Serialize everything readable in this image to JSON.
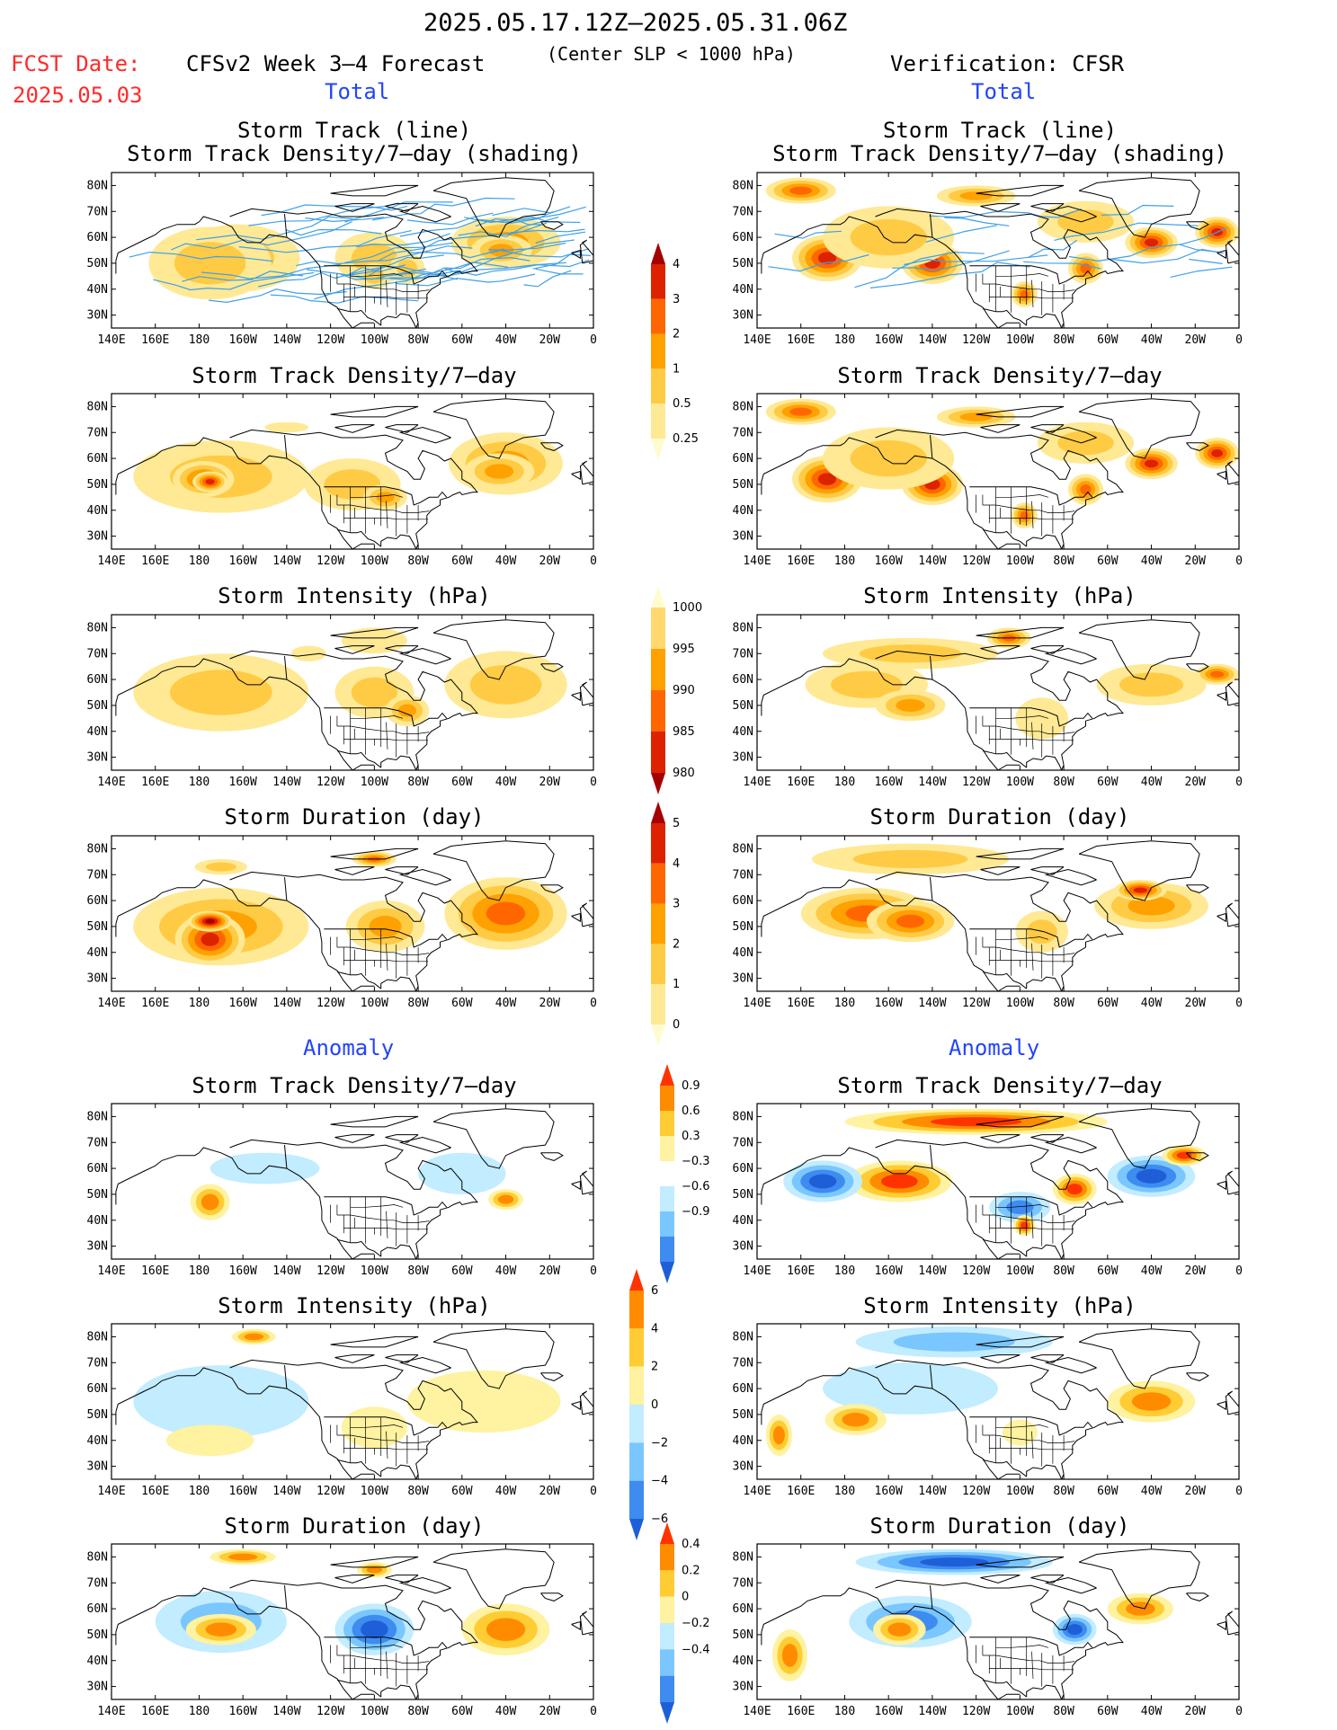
{
  "header": {
    "period": "2025.05.17.12Z–2025.05.31.06Z",
    "fcst_label": "FCST Date:",
    "fcst_date": "2025.05.03",
    "model": "CFSv2 Week 3–4 Forecast",
    "criterion": "(Center SLP < 1000 hPa)",
    "verification": "Verification: CFSR",
    "left_total": "Total",
    "right_total": "Total",
    "left_anomaly": "Anomaly",
    "right_anomaly": "Anomaly"
  },
  "panel_titles": {
    "track_line": "Storm Track (line)",
    "track_shading": "Storm Track Density/7–day (shading)",
    "density": "Storm Track Density/7–day",
    "intensity": "Storm Intensity (hPa)",
    "duration": "Storm Duration (day)"
  },
  "axes": {
    "lat_ticks": [
      "80N",
      "70N",
      "60N",
      "50N",
      "40N",
      "30N"
    ],
    "lon_ticks": [
      "140E",
      "160E",
      "180",
      "160W",
      "140W",
      "120W",
      "100W",
      "80W",
      "60W",
      "40W",
      "20W",
      "0"
    ]
  },
  "colorbars": {
    "density_total": {
      "labels": [
        "4",
        "3",
        "2",
        "1",
        "0.5",
        "0.25"
      ],
      "colors": [
        "#a50000",
        "#dd2200",
        "#ff6600",
        "#ffa100",
        "#ffcb45",
        "#ffe994",
        "#fffbd0"
      ]
    },
    "intensity_total": {
      "labels": [
        "1000",
        "995",
        "990",
        "985",
        "980"
      ],
      "colors": [
        "#fffbd0",
        "#ffd870",
        "#ffa100",
        "#ff6600",
        "#dd2200",
        "#a50000"
      ]
    },
    "duration_total": {
      "labels": [
        "5",
        "4",
        "3",
        "2",
        "1",
        "0"
      ],
      "colors": [
        "#a50000",
        "#dd2200",
        "#ff6600",
        "#ffa100",
        "#ffcb45",
        "#ffe994",
        "#fffbd0"
      ]
    },
    "density_anom": {
      "labels": [
        "0.9",
        "0.6",
        "0.3",
        "−0.3",
        "−0.6",
        "−0.9"
      ],
      "colors": [
        "#ff3300",
        "#ff8c00",
        "#ffcc33",
        "#fff2a0",
        "#ffffff",
        "#c2ecff",
        "#7ac6ff",
        "#3e8cf0",
        "#1e5fd8"
      ]
    },
    "intensity_anom": {
      "labels": [
        "6",
        "4",
        "2",
        "0",
        "−2",
        "−4",
        "−6"
      ],
      "colors": [
        "#ff3300",
        "#ff8c00",
        "#ffcc33",
        "#fff2a0",
        "#c2ecff",
        "#7ac6ff",
        "#3e8cf0",
        "#1e5fd8"
      ]
    },
    "duration_anom": {
      "labels": [
        "0.4",
        "0.2",
        "0",
        "−0.2",
        "−0.4"
      ],
      "colors": [
        "#ff3300",
        "#ff8c00",
        "#ffcc33",
        "#fff2a0",
        "#c2ecff",
        "#7ac6ff",
        "#3e8cf0",
        "#1e5fd8"
      ]
    }
  },
  "map_data": {
    "rows": [
      {
        "key": "track",
        "left": {
          "blobs": [
            [
              -162,
              52,
              28,
              13,
              1
            ],
            [
              -178,
              52,
              16,
              8,
              3
            ],
            [
              -175,
              52,
              8,
              4,
              4
            ],
            [
              -100,
              52,
              18,
              10,
              1
            ],
            [
              -40,
              58,
              25,
              10,
              2
            ],
            [
              -100,
              45,
              8,
              5,
              1
            ],
            [
              -85,
              48,
              8,
              6,
              1
            ],
            [
              -42,
              55,
              14,
              6,
              2
            ],
            [
              -175,
              50,
              28,
              14,
              1
            ]
          ]
        },
        "right": {
          "blobs": [
            [
              160,
              78,
              16,
              5,
              3
            ],
            [
              -140,
              50,
              14,
              8,
              4
            ],
            [
              172,
              52,
              16,
              9,
              4
            ],
            [
              -120,
              76,
              18,
              4,
              2
            ],
            [
              -40,
              58,
              12,
              6,
              4
            ],
            [
              -10,
              62,
              10,
              6,
              4
            ],
            [
              -70,
              48,
              8,
              6,
              3
            ],
            [
              -98,
              38,
              6,
              5,
              3
            ],
            [
              -160,
              60,
              30,
              12,
              1
            ],
            [
              -70,
              66,
              22,
              8,
              1
            ]
          ]
        }
      },
      {
        "key": "density",
        "left": {
          "blobs": [
            [
              -170,
              53,
              40,
              14,
              1
            ],
            [
              -178,
              52,
              14,
              7,
              3
            ],
            [
              -175,
              51,
              8,
              4,
              4
            ],
            [
              -110,
              50,
              22,
              10,
              1
            ],
            [
              -40,
              58,
              26,
              12,
              2
            ],
            [
              -43,
              55,
              16,
              7,
              2
            ],
            [
              -95,
              45,
              10,
              5,
              2
            ],
            [
              -140,
              72,
              10,
              2,
              0
            ]
          ]
        },
        "right": {
          "blobs": [
            [
              160,
              78,
              16,
              5,
              3
            ],
            [
              -140,
              50,
              14,
              8,
              4
            ],
            [
              172,
              52,
              16,
              9,
              4
            ],
            [
              -120,
              76,
              18,
              4,
              2
            ],
            [
              -40,
              58,
              12,
              6,
              4
            ],
            [
              -10,
              62,
              10,
              6,
              4
            ],
            [
              -70,
              48,
              8,
              6,
              3
            ],
            [
              -98,
              38,
              6,
              5,
              3
            ],
            [
              -160,
              60,
              30,
              12,
              1
            ],
            [
              -70,
              66,
              22,
              8,
              1
            ]
          ]
        }
      },
      {
        "key": "intensity",
        "left": {
          "blobs": [
            [
              -170,
              55,
              40,
              15,
              1
            ],
            [
              -40,
              58,
              28,
              13,
              1
            ],
            [
              -100,
              55,
              18,
              10,
              1
            ],
            [
              -85,
              48,
              10,
              6,
              2
            ],
            [
              -100,
              75,
              15,
              5,
              0
            ],
            [
              -130,
              70,
              8,
              3,
              0
            ]
          ]
        },
        "right": {
          "blobs": [
            [
              -150,
              70,
              40,
              6,
              1
            ],
            [
              -105,
              76,
              10,
              4,
              3
            ],
            [
              -170,
              58,
              28,
              9,
              1
            ],
            [
              -40,
              58,
              25,
              8,
              1
            ],
            [
              -10,
              62,
              10,
              4,
              3
            ],
            [
              -150,
              50,
              16,
              6,
              2
            ],
            [
              -90,
              45,
              12,
              8,
              0
            ]
          ]
        }
      },
      {
        "key": "duration",
        "left": {
          "blobs": [
            [
              -170,
              50,
              40,
              15,
              2
            ],
            [
              -175,
              45,
              16,
              10,
              4
            ],
            [
              -175,
              52,
              10,
              4,
              5
            ],
            [
              -40,
              55,
              28,
              14,
              3
            ],
            [
              -95,
              50,
              18,
              10,
              2
            ],
            [
              -100,
              76,
              10,
              3,
              3
            ],
            [
              -170,
              73,
              12,
              3,
              1
            ]
          ]
        },
        "right": {
          "blobs": [
            [
              -150,
              76,
              45,
              6,
              1
            ],
            [
              -170,
              55,
              30,
              10,
              3
            ],
            [
              -150,
              52,
              20,
              8,
              3
            ],
            [
              -40,
              58,
              26,
              9,
              2
            ],
            [
              -45,
              64,
              12,
              4,
              4
            ],
            [
              -90,
              48,
              12,
              8,
              1
            ]
          ]
        }
      },
      {
        "key": "density_anom",
        "left": {
          "blobs": [
            [
              -175,
              48,
              5,
              4,
              8
            ],
            [
              -175,
              47,
              9,
              7,
              5
            ],
            [
              -150,
              60,
              25,
              6,
              -1
            ],
            [
              -60,
              58,
              20,
              8,
              -1
            ],
            [
              -40,
              48,
              8,
              4,
              5
            ]
          ]
        },
        "right": {
          "blobs": [
            [
              -120,
              78,
              60,
              5,
              8
            ],
            [
              -155,
              55,
              24,
              8,
              8
            ],
            [
              170,
              55,
              18,
              8,
              -7
            ],
            [
              -40,
              57,
              20,
              8,
              -7
            ],
            [
              -25,
              65,
              10,
              4,
              8
            ],
            [
              -75,
              52,
              10,
              6,
              8
            ],
            [
              -100,
              45,
              14,
              6,
              -6
            ],
            [
              -98,
              38,
              5,
              4,
              8
            ]
          ]
        }
      },
      {
        "key": "intensity_anom",
        "left": {
          "blobs": [
            [
              -155,
              80,
              10,
              3,
              6
            ],
            [
              -170,
              55,
              40,
              14,
              -1
            ],
            [
              -50,
              55,
              35,
              12,
              1
            ],
            [
              -175,
              40,
              20,
              6,
              1
            ],
            [
              -100,
              45,
              15,
              8,
              1
            ]
          ]
        },
        "right": {
          "blobs": [
            [
              -130,
              78,
              45,
              6,
              -3
            ],
            [
              -150,
              60,
              40,
              10,
              -2
            ],
            [
              -40,
              55,
              20,
              8,
              5
            ],
            [
              -175,
              48,
              14,
              6,
              6
            ],
            [
              150,
              42,
              6,
              8,
              5
            ],
            [
              -100,
              43,
              8,
              5,
              1
            ]
          ]
        }
      },
      {
        "key": "duration_anom",
        "left": {
          "blobs": [
            [
              -170,
              55,
              30,
              12,
              -4
            ],
            [
              -170,
              52,
              16,
              6,
              6
            ],
            [
              -100,
              52,
              18,
              10,
              -7
            ],
            [
              -40,
              52,
              20,
              10,
              6
            ],
            [
              -160,
              80,
              15,
              3,
              6
            ],
            [
              -100,
              75,
              8,
              3,
              6
            ]
          ]
        },
        "right": {
          "blobs": [
            [
              -130,
              78,
              45,
              5,
              -7
            ],
            [
              -150,
              55,
              28,
              10,
              -5
            ],
            [
              -155,
              52,
              12,
              6,
              6
            ],
            [
              -45,
              60,
              15,
              6,
              6
            ],
            [
              -75,
              52,
              10,
              6,
              -7
            ],
            [
              155,
              42,
              8,
              10,
              6
            ]
          ]
        }
      }
    ]
  }
}
